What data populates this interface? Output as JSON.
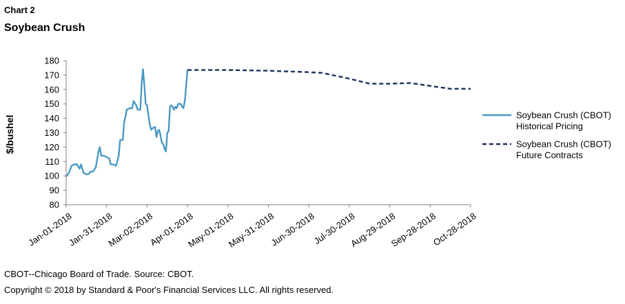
{
  "header": {
    "chart_label": "Chart 2",
    "title": "Soybean Crush"
  },
  "footnotes": [
    "CBOT--Chicago Board of Trade. Source: CBOT.",
    "Copyright © 2018 by Standard & Poor's Financial Services LLC. All rights reserved."
  ],
  "colors": {
    "historical": "#4a98c4",
    "future": "#1a2f5c"
  },
  "chart_data": {
    "type": "line",
    "title": "Soybean Crush",
    "ylabel": "$/bushel",
    "xlabel": "",
    "ylim": [
      80,
      180
    ],
    "yticks": [
      80,
      90,
      100,
      110,
      120,
      130,
      140,
      150,
      160,
      170,
      180
    ],
    "x_ticks": [
      "Jan-01-2018",
      "Jan-31-2018",
      "Mar-02-2018",
      "Apr-01-2018",
      "May-01-2018",
      "May-31-2018",
      "Jun-30-2018",
      "Jul-30-2018",
      "Aug-29-2018",
      "Sep-28-2018",
      "Oct-28-2018"
    ],
    "grid": false,
    "legend_position": "right",
    "series": [
      {
        "name": "Soybean Crush (CBOT) Historical Pricing",
        "name_lines": [
          "Soybean Crush (CBOT)",
          "Historical Pricing"
        ],
        "style": "solid",
        "points": [
          [
            "2018-01-01",
            99.5
          ],
          [
            "2018-01-03",
            102
          ],
          [
            "2018-01-05",
            107
          ],
          [
            "2018-01-07",
            108
          ],
          [
            "2018-01-09",
            108
          ],
          [
            "2018-01-11",
            105
          ],
          [
            "2018-01-12",
            108
          ],
          [
            "2018-01-14",
            102
          ],
          [
            "2018-01-16",
            101
          ],
          [
            "2018-01-18",
            101.5
          ],
          [
            "2018-01-19",
            103
          ],
          [
            "2018-01-21",
            103
          ],
          [
            "2018-01-23",
            106
          ],
          [
            "2018-01-25",
            117
          ],
          [
            "2018-01-26",
            120
          ],
          [
            "2018-01-27",
            114
          ],
          [
            "2018-01-29",
            114
          ],
          [
            "2018-01-31",
            113
          ],
          [
            "2018-02-02",
            112
          ],
          [
            "2018-02-03",
            108
          ],
          [
            "2018-02-05",
            108
          ],
          [
            "2018-02-07",
            107
          ],
          [
            "2018-02-09",
            114
          ],
          [
            "2018-02-10",
            125
          ],
          [
            "2018-02-12",
            125
          ],
          [
            "2018-02-13",
            137
          ],
          [
            "2018-02-15",
            146
          ],
          [
            "2018-02-17",
            147
          ],
          [
            "2018-02-19",
            147
          ],
          [
            "2018-02-20",
            152
          ],
          [
            "2018-02-22",
            149
          ],
          [
            "2018-02-23",
            146
          ],
          [
            "2018-02-25",
            146
          ],
          [
            "2018-02-26",
            164
          ],
          [
            "2018-02-27",
            174
          ],
          [
            "2018-02-28",
            163
          ],
          [
            "2018-03-01",
            150
          ],
          [
            "2018-03-02",
            149
          ],
          [
            "2018-03-03",
            142
          ],
          [
            "2018-03-04",
            136
          ],
          [
            "2018-03-05",
            132
          ],
          [
            "2018-03-06",
            133
          ],
          [
            "2018-03-08",
            134
          ],
          [
            "2018-03-09",
            127
          ],
          [
            "2018-03-10",
            131
          ],
          [
            "2018-03-11",
            132
          ],
          [
            "2018-03-12",
            128
          ],
          [
            "2018-03-13",
            123
          ],
          [
            "2018-03-14",
            122
          ],
          [
            "2018-03-15",
            119
          ],
          [
            "2018-03-16",
            117
          ],
          [
            "2018-03-17",
            130
          ],
          [
            "2018-03-18",
            131
          ],
          [
            "2018-03-19",
            148
          ],
          [
            "2018-03-20",
            149
          ],
          [
            "2018-03-21",
            148
          ],
          [
            "2018-03-22",
            146
          ],
          [
            "2018-03-23",
            148
          ],
          [
            "2018-03-24",
            147
          ],
          [
            "2018-03-25",
            150
          ],
          [
            "2018-03-27",
            150
          ],
          [
            "2018-03-28",
            148
          ],
          [
            "2018-03-29",
            147
          ],
          [
            "2018-03-30",
            152
          ],
          [
            "2018-04-01",
            173.5
          ]
        ]
      },
      {
        "name": "Soybean Crush (CBOT) Future Contracts",
        "name_lines": [
          "Soybean Crush (CBOT)",
          "Future Contracts"
        ],
        "style": "dashed",
        "points": [
          [
            "2018-04-01",
            173.5
          ],
          [
            "2018-05-01",
            173.5
          ],
          [
            "2018-05-31",
            173
          ],
          [
            "2018-06-30",
            172
          ],
          [
            "2018-07-10",
            171.5
          ],
          [
            "2018-07-30",
            167.5
          ],
          [
            "2018-08-14",
            164
          ],
          [
            "2018-08-29",
            164
          ],
          [
            "2018-09-13",
            164.5
          ],
          [
            "2018-09-28",
            162.5
          ],
          [
            "2018-10-13",
            160.5
          ],
          [
            "2018-10-28",
            160.5
          ]
        ]
      }
    ]
  }
}
